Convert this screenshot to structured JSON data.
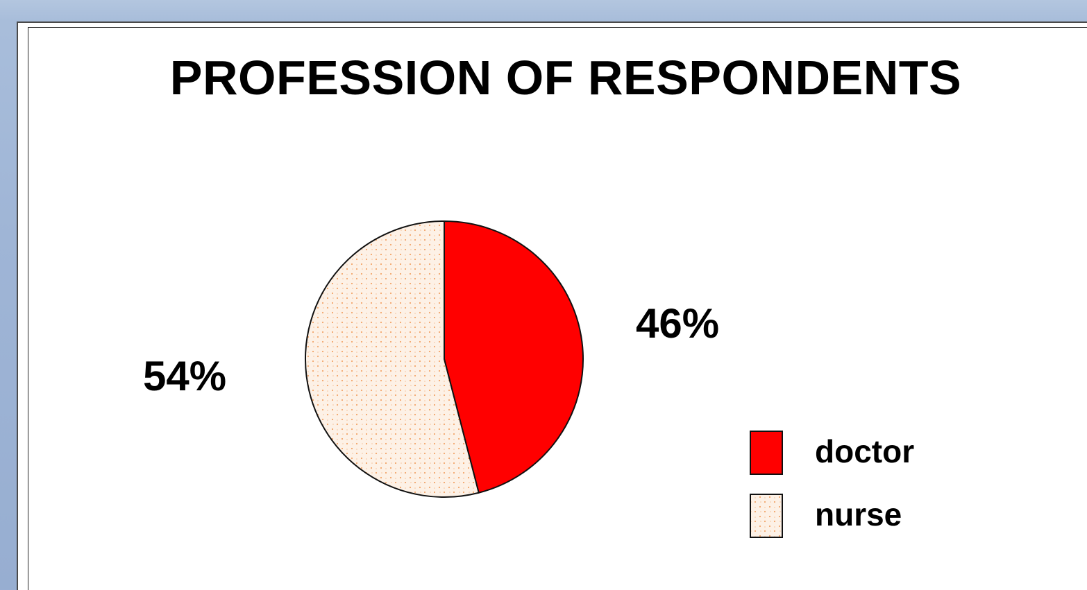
{
  "chart_data": {
    "type": "pie",
    "title": "PROFESSION OF RESPONDENTS",
    "categories": [
      "doctor",
      "nurse"
    ],
    "values": [
      46,
      54
    ],
    "data_labels": [
      "46%",
      "54%"
    ],
    "colors": {
      "doctor": "#ff0000",
      "nurse": "#fdf0e4",
      "nurse_pattern_dots": "#f2a469"
    },
    "legend": {
      "placement": "right",
      "items": [
        {
          "label": "doctor"
        },
        {
          "label": "nurse"
        }
      ]
    }
  }
}
